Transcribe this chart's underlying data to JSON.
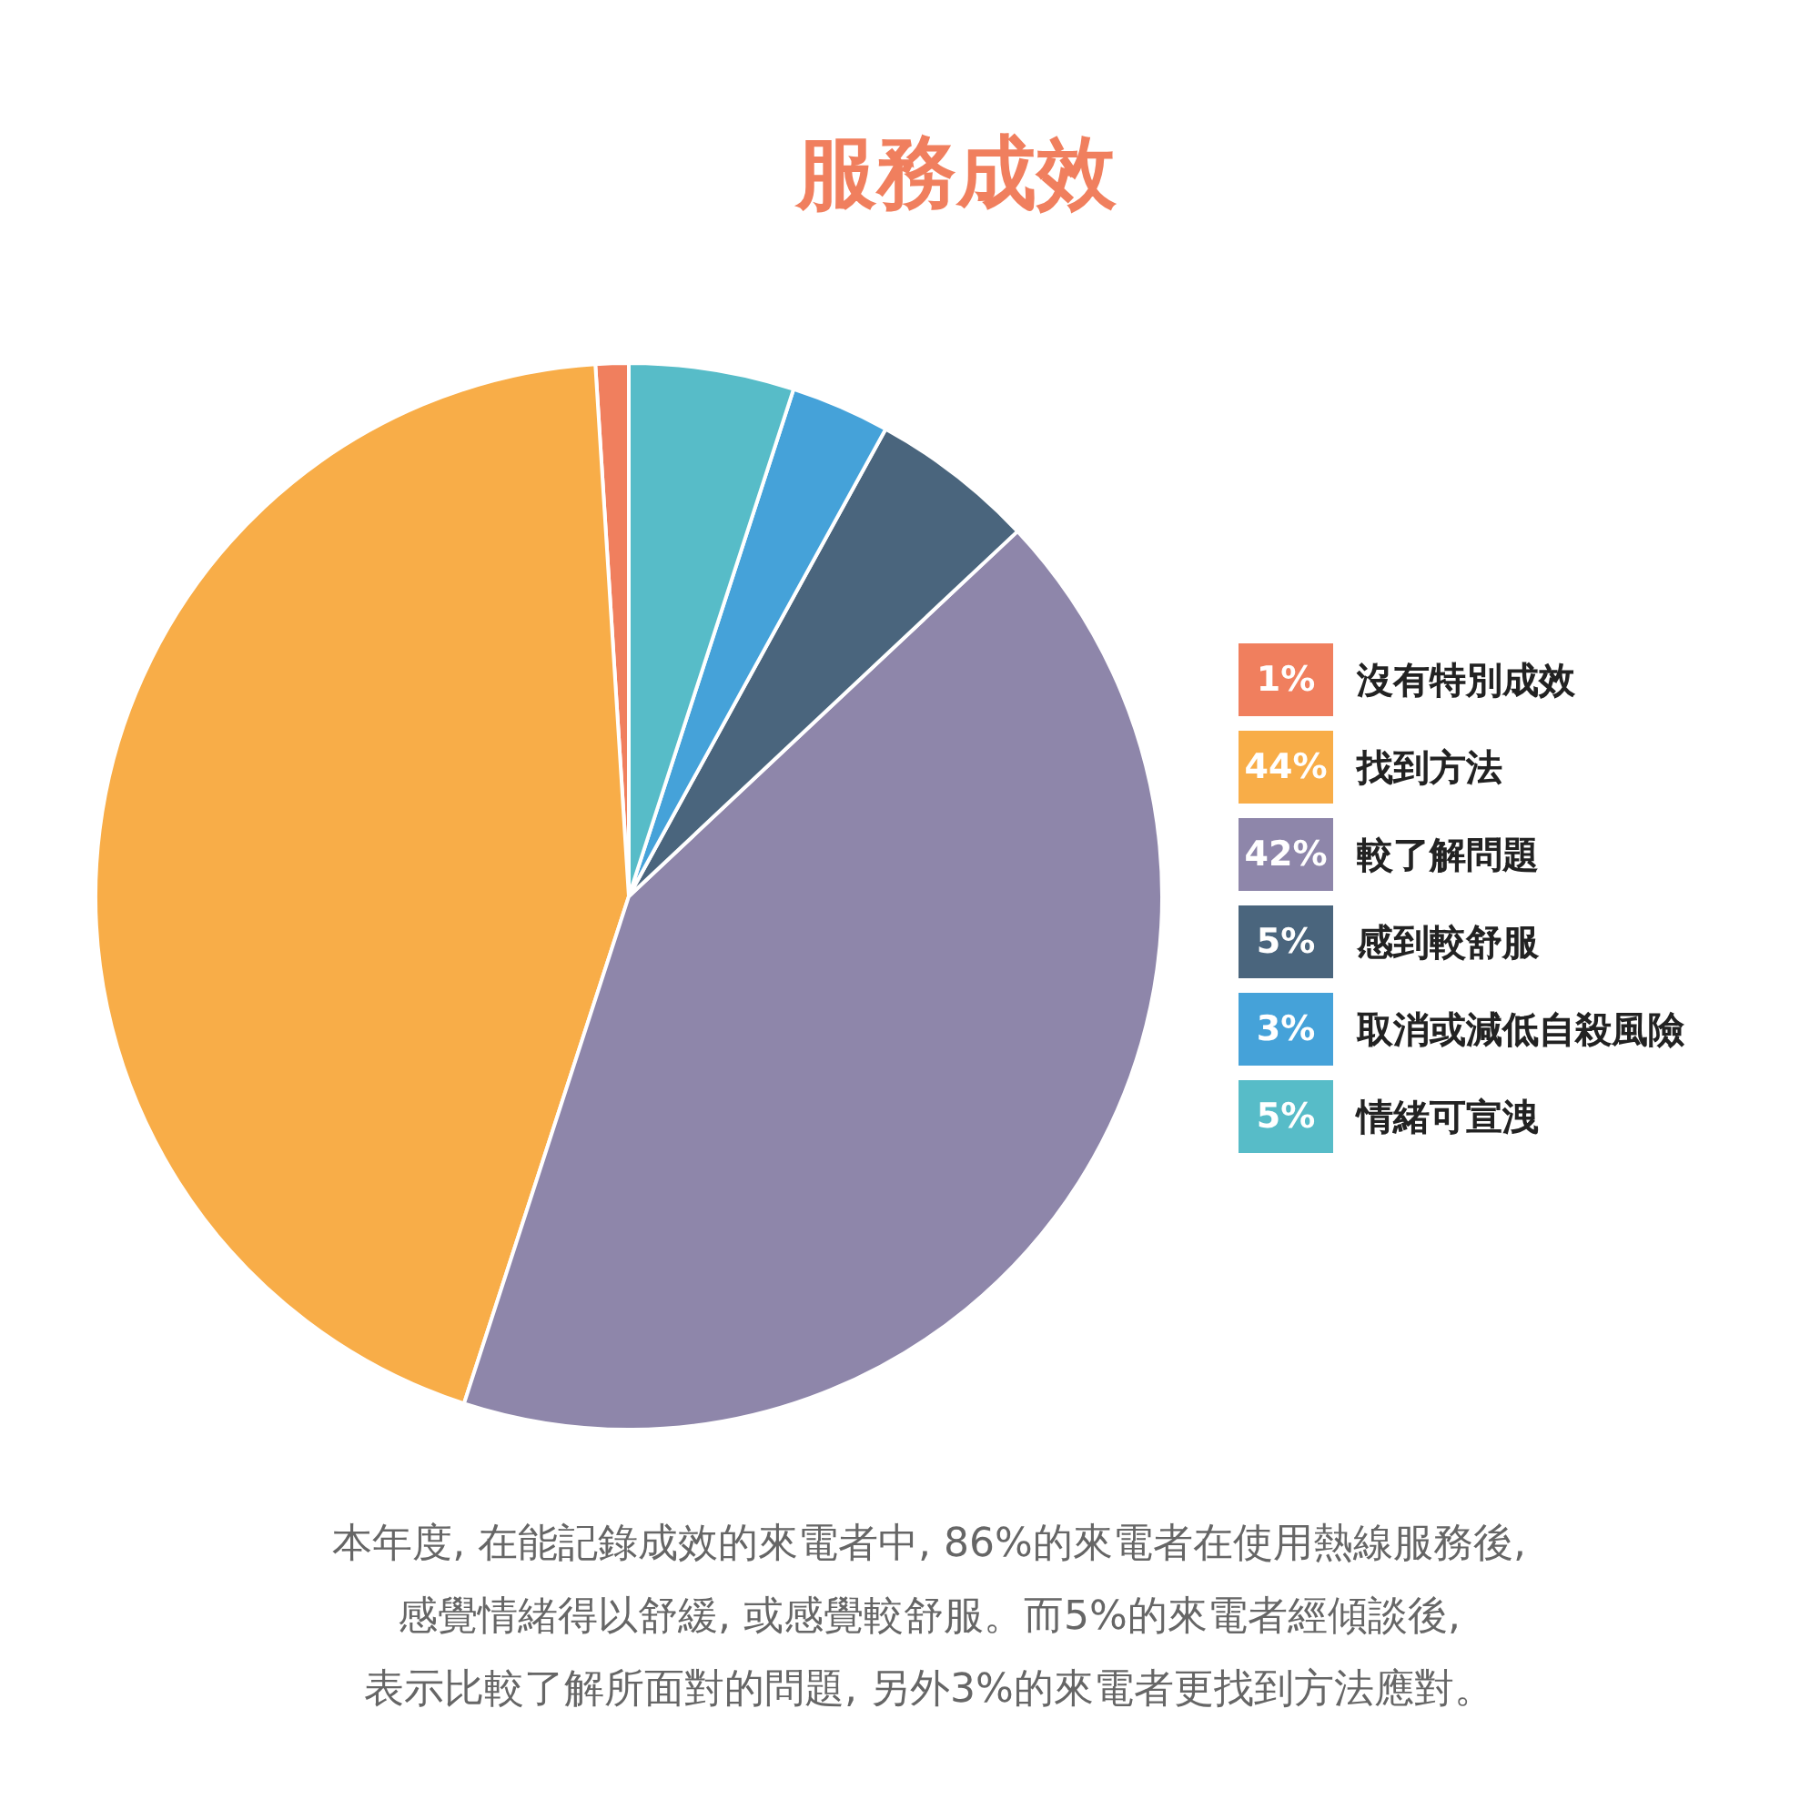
{
  "chart_data": {
    "type": "pie",
    "title": "服務成效",
    "categories": [
      "沒有特別成效",
      "找到方法",
      "較了解問題",
      "感到較舒服",
      "取消或減低自殺風險",
      "情緒可宣洩"
    ],
    "values": [
      1,
      44,
      42,
      5,
      3,
      5
    ],
    "value_labels": [
      "1%",
      "44%",
      "42%",
      "5%",
      "3%",
      "5%"
    ],
    "colors": [
      "#f07f5e",
      "#f8ad48",
      "#8e86aa",
      "#4a657d",
      "#45a2d9",
      "#57bcc8"
    ],
    "legend": "right",
    "annotations": [
      "本年度, 在能記錄成效的來電者中, 86%的來電者在使用熱線服務後,",
      "感覺情緒得以舒緩, 或感覺較舒服。而5%的來電者經傾談後,",
      "表示比較了解所面對的問題, 另外3%的來電者更找到方法應對。"
    ]
  }
}
